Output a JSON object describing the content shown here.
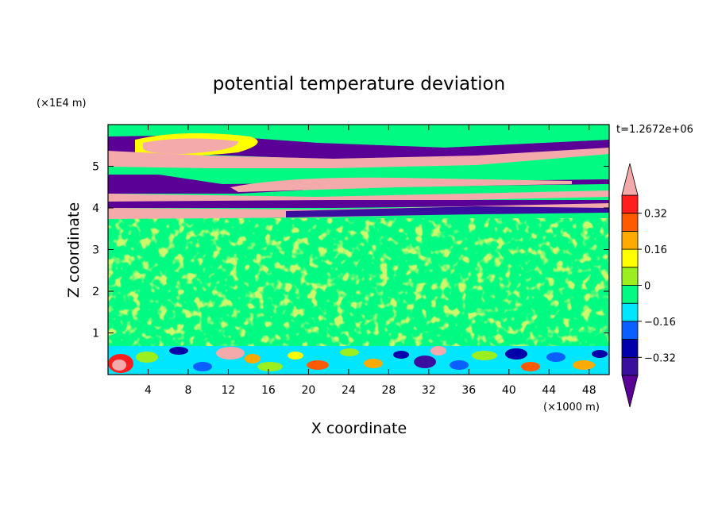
{
  "chart_data": {
    "type": "heatmap",
    "title": "potential temperature deviation",
    "xlabel": "X coordinate",
    "ylabel": "Z coordinate",
    "x_unit": "(×1000 m)",
    "y_unit": "(×1E4 m)",
    "time_label": "t=1.2672e+06",
    "xlim": [
      0,
      50
    ],
    "ylim": [
      0,
      6
    ],
    "x_ticks": [
      4,
      8,
      12,
      16,
      20,
      24,
      28,
      32,
      36,
      40,
      44,
      48
    ],
    "y_ticks": [
      1,
      2,
      3,
      4,
      5
    ],
    "colorbar": {
      "levels": [
        -0.4,
        -0.32,
        -0.24,
        -0.16,
        -0.08,
        0,
        0.08,
        0.16,
        0.24,
        0.32,
        0.4
      ],
      "tick_values": [
        0.32,
        0.16,
        0,
        -0.16,
        -0.32
      ],
      "tick_labels": [
        "0.32",
        "0.16",
        "0",
        "−0.16",
        "−0.32"
      ],
      "colors_low_to_high": [
        "#5a0096",
        "#3a0fa0",
        "#0000aa",
        "#0a5fff",
        "#00e6ff",
        "#00fa82",
        "#9bef1f",
        "#ffff00",
        "#ffaa00",
        "#ff5a00",
        "#ff1e1e",
        "#f4aaaa"
      ],
      "extends": "both"
    }
  }
}
